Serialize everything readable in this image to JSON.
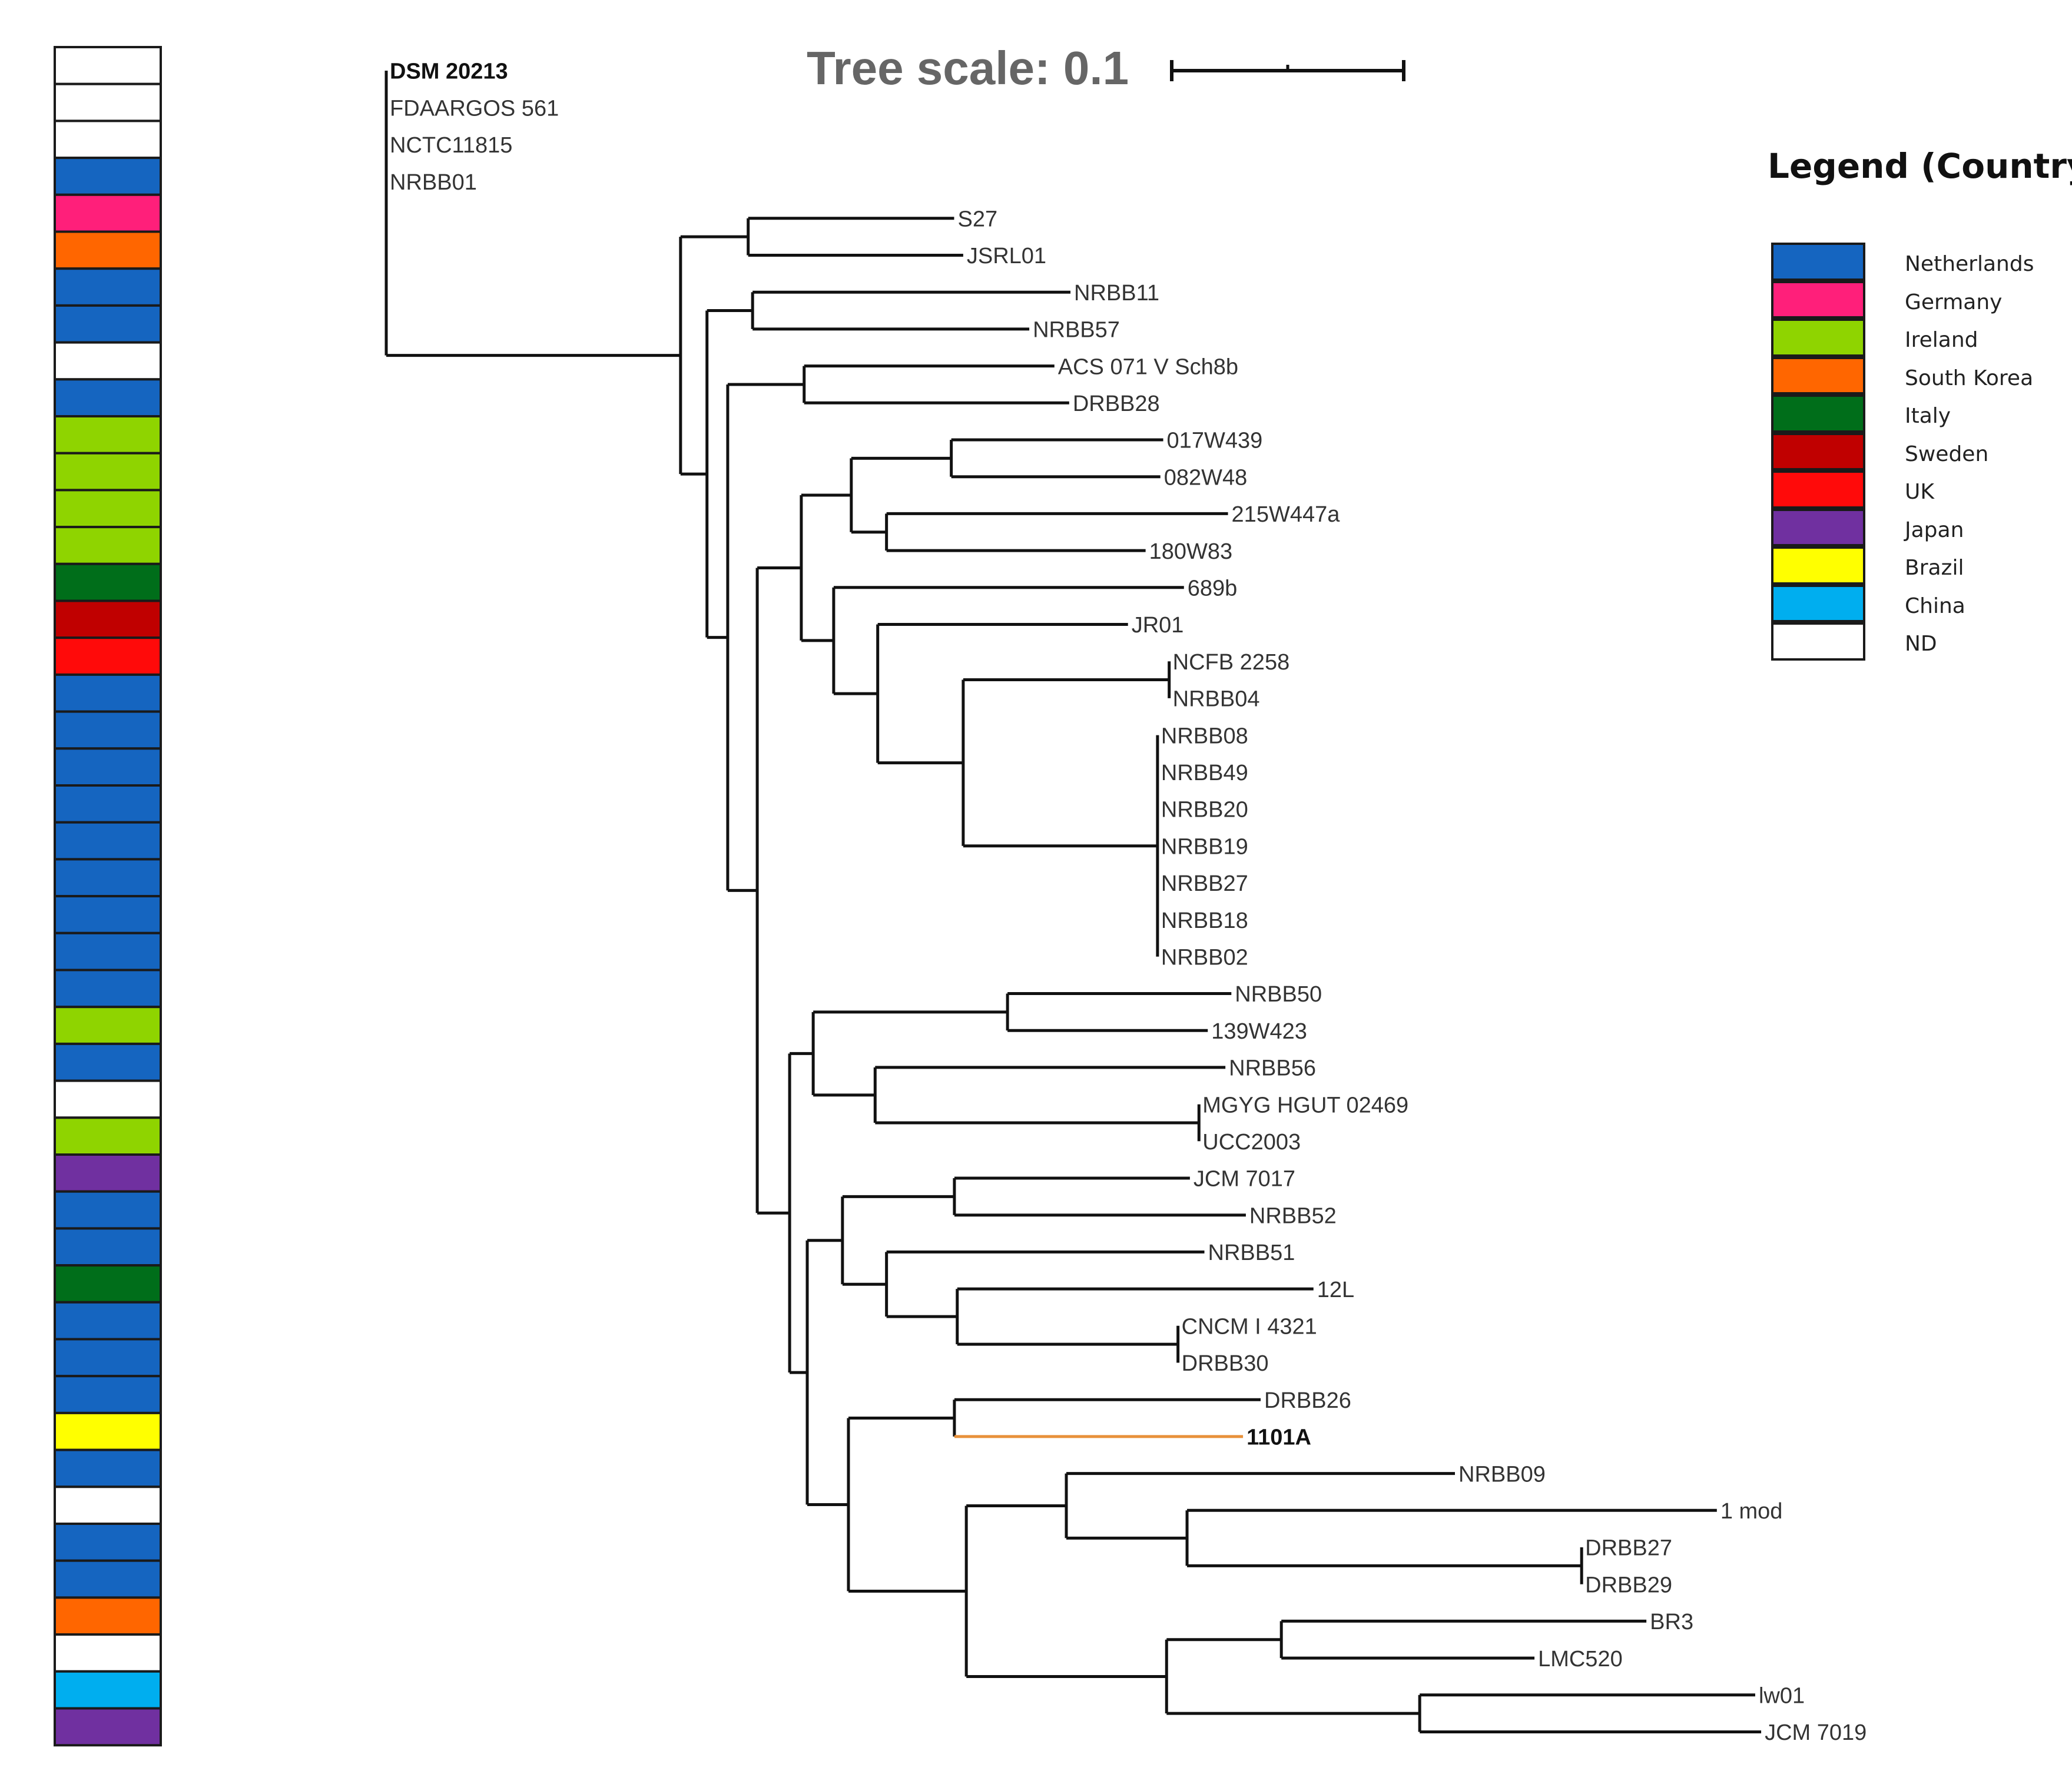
{
  "scale": {
    "label": "Tree scale: 0.1"
  },
  "legend": {
    "title": "Legend (Country)",
    "items": [
      {
        "key": "Netherlands",
        "label": "Netherlands",
        "color": "#1565C0"
      },
      {
        "key": "Germany",
        "label": "Germany",
        "color": "#FF1F7A"
      },
      {
        "key": "Ireland",
        "label": "Ireland",
        "color": "#8FD400"
      },
      {
        "key": "SouthKorea",
        "label": "South Korea",
        "color": "#FF6600"
      },
      {
        "key": "Italy",
        "label": "Italy",
        "color": "#006E1A"
      },
      {
        "key": "Sweden",
        "label": "Sweden",
        "color": "#C00000"
      },
      {
        "key": "UK",
        "label": "UK",
        "color": "#FF0A0A"
      },
      {
        "key": "Japan",
        "label": "Japan",
        "color": "#7030A0"
      },
      {
        "key": "Brazil",
        "label": "Brazil",
        "color": "#FFFF00"
      },
      {
        "key": "China",
        "label": "China",
        "color": "#00AEEF"
      },
      {
        "key": "ND",
        "label": "ND",
        "color": "#FFFFFF"
      }
    ]
  },
  "highlight_color": "#E8913A",
  "country_strip": [
    "ND",
    "ND",
    "ND",
    "Netherlands",
    "Germany",
    "SouthKorea",
    "Netherlands",
    "Netherlands",
    "ND",
    "Netherlands",
    "Ireland",
    "Ireland",
    "Ireland",
    "Ireland",
    "Italy",
    "Sweden",
    "UK",
    "Netherlands",
    "Netherlands",
    "Netherlands",
    "Netherlands",
    "Netherlands",
    "Netherlands",
    "Netherlands",
    "Netherlands",
    "Netherlands",
    "Ireland",
    "Netherlands",
    "ND",
    "Ireland",
    "Japan",
    "Netherlands",
    "Netherlands",
    "Italy",
    "Netherlands",
    "Netherlands",
    "Netherlands",
    "Brazil",
    "Netherlands",
    "ND",
    "Netherlands",
    "Netherlands",
    "SouthKorea",
    "ND",
    "China",
    "Japan"
  ],
  "tree": {
    "children": [
      {
        "len": 0.0,
        "children": [
          {
            "name": "DSM 20213",
            "len": 0.0,
            "bold": true
          },
          {
            "name": "FDAARGOS 561",
            "len": 0.0
          },
          {
            "name": "NCTC11815",
            "len": 0.0
          },
          {
            "name": "NRBB01",
            "len": 0.0
          }
        ]
      },
      {
        "len": 0.1136,
        "children": [
          {
            "len": 0.0261,
            "children": [
              {
                "name": "S27",
                "len": 0.0795
              },
              {
                "name": "JSRL01",
                "len": 0.083
              }
            ]
          },
          {
            "len": 0.0102,
            "children": [
              {
                "len": 0.0176,
                "children": [
                  {
                    "name": "NRBB11",
                    "len": 0.1227
                  },
                  {
                    "name": "NRBB57",
                    "len": 0.1068
                  }
                ]
              },
              {
                "len": 0.008,
                "children": [
                  {
                    "len": 0.0295,
                    "children": [
                      {
                        "name": "ACS 071 V Sch8b",
                        "len": 0.0966
                      },
                      {
                        "name": "DRBB28",
                        "len": 0.1023
                      }
                    ]
                  },
                  {
                    "len": 0.0114,
                    "children": [
                      {
                        "len": 0.017,
                        "children": [
                          {
                            "len": 0.0193,
                            "children": [
                              {
                                "len": 0.0386,
                                "children": [
                                  {
                                    "name": "017W439",
                                    "len": 0.0818
                                  },
                                  {
                                    "name": "082W48",
                                    "len": 0.0807
                                  }
                                ]
                              },
                              {
                                "len": 0.0136,
                                "children": [
                                  {
                                    "name": "215W447a",
                                    "len": 0.1318
                                  },
                                  {
                                    "name": "180W83",
                                    "len": 0.1
                                  }
                                ]
                              }
                            ]
                          },
                          {
                            "len": 0.0125,
                            "children": [
                              {
                                "name": "689b",
                                "len": 0.1352
                              },
                              {
                                "len": 0.017,
                                "children": [
                                  {
                                    "name": "JR01",
                                    "len": 0.0966
                                  },
                                  {
                                    "len": 0.033,
                                    "children": [
                                      {
                                        "len": 0.0795,
                                        "children": [
                                          {
                                            "name": "NCFB 2258",
                                            "len": 0.0
                                          },
                                          {
                                            "name": "NRBB04",
                                            "len": 0.0
                                          }
                                        ]
                                      },
                                      {
                                        "len": 0.075,
                                        "children": [
                                          {
                                            "name": "NRBB08",
                                            "len": 0.0
                                          },
                                          {
                                            "name": "NRBB49",
                                            "len": 0.0
                                          },
                                          {
                                            "name": "NRBB20",
                                            "len": 0.0
                                          },
                                          {
                                            "name": "NRBB19",
                                            "len": 0.0
                                          },
                                          {
                                            "name": "NRBB27",
                                            "len": 0.0
                                          },
                                          {
                                            "name": "NRBB18",
                                            "len": 0.0
                                          },
                                          {
                                            "name": "NRBB02",
                                            "len": 0.0
                                          }
                                        ]
                                      }
                                    ]
                                  }
                                ]
                              }
                            ]
                          }
                        ]
                      },
                      {
                        "len": 0.0125,
                        "children": [
                          {
                            "len": 0.0091,
                            "children": [
                              {
                                "len": 0.075,
                                "children": [
                                  {
                                    "name": "NRBB50",
                                    "len": 0.0864
                                  },
                                  {
                                    "name": "139W423",
                                    "len": 0.0773
                                  }
                                ]
                              },
                              {
                                "len": 0.0239,
                                "children": [
                                  {
                                    "name": "NRBB56",
                                    "len": 0.1352
                                  },
                                  {
                                    "len": 0.125,
                                    "children": [
                                      {
                                        "name": "MGYG HGUT 02469",
                                        "len": 0.0
                                      },
                                      {
                                        "name": "UCC2003",
                                        "len": 0.0
                                      }
                                    ]
                                  }
                                ]
                              }
                            ]
                          },
                          {
                            "len": 0.0068,
                            "children": [
                              {
                                "len": 0.0136,
                                "children": [
                                  {
                                    "len": 0.0432,
                                    "children": [
                                      {
                                        "name": "JCM 7017",
                                        "len": 0.0909
                                      },
                                      {
                                        "name": "NRBB52",
                                        "len": 0.1125
                                      }
                                    ]
                                  },
                                  {
                                    "len": 0.017,
                                    "children": [
                                      {
                                        "name": "NRBB51",
                                        "len": 0.1227
                                      },
                                      {
                                        "len": 0.0273,
                                        "children": [
                                          {
                                            "name": "12L",
                                            "len": 0.1375
                                          },
                                          {
                                            "len": 0.0852,
                                            "children": [
                                              {
                                                "name": "CNCM I 4321",
                                                "len": 0.0
                                              },
                                              {
                                                "name": "DRBB30",
                                                "len": 0.0
                                              }
                                            ]
                                          }
                                        ]
                                      }
                                    ]
                                  }
                                ]
                              },
                              {
                                "len": 0.0159,
                                "children": [
                                  {
                                    "len": 0.0409,
                                    "children": [
                                      {
                                        "name": "DRBB26",
                                        "len": 0.1182
                                      },
                                      {
                                        "name": "1101A",
                                        "len": 0.1114,
                                        "bold": true,
                                        "highlight": true
                                      }
                                    ]
                                  },
                                  {
                                    "len": 0.0455,
                                    "children": [
                                      {
                                        "len": 0.0386,
                                        "children": [
                                          {
                                            "name": "NRBB09",
                                            "len": 0.15
                                          },
                                          {
                                            "len": 0.0466,
                                            "children": [
                                              {
                                                "name": "1 mod",
                                                "len": 0.2045
                                              },
                                              {
                                                "len": 0.1523,
                                                "children": [
                                                  {
                                                    "name": "DRBB27",
                                                    "len": 0.0
                                                  },
                                                  {
                                                    "name": "DRBB29",
                                                    "len": 0.0
                                                  }
                                                ]
                                              }
                                            ]
                                          }
                                        ]
                                      },
                                      {
                                        "len": 0.0773,
                                        "children": [
                                          {
                                            "len": 0.0443,
                                            "children": [
                                              {
                                                "name": "BR3",
                                                "len": 0.1409
                                              },
                                              {
                                                "name": "LMC520",
                                                "len": 0.0977
                                              }
                                            ]
                                          },
                                          {
                                            "len": 0.0977,
                                            "children": [
                                              {
                                                "name": "lw01",
                                                "len": 0.1295
                                              },
                                              {
                                                "name": "JCM 7019",
                                                "len": 0.1318
                                              }
                                            ]
                                          }
                                        ]
                                      }
                                    ]
                                  }
                                ]
                              }
                            ]
                          }
                        ]
                      }
                    ]
                  }
                ]
              }
            ]
          }
        ]
      }
    ]
  }
}
